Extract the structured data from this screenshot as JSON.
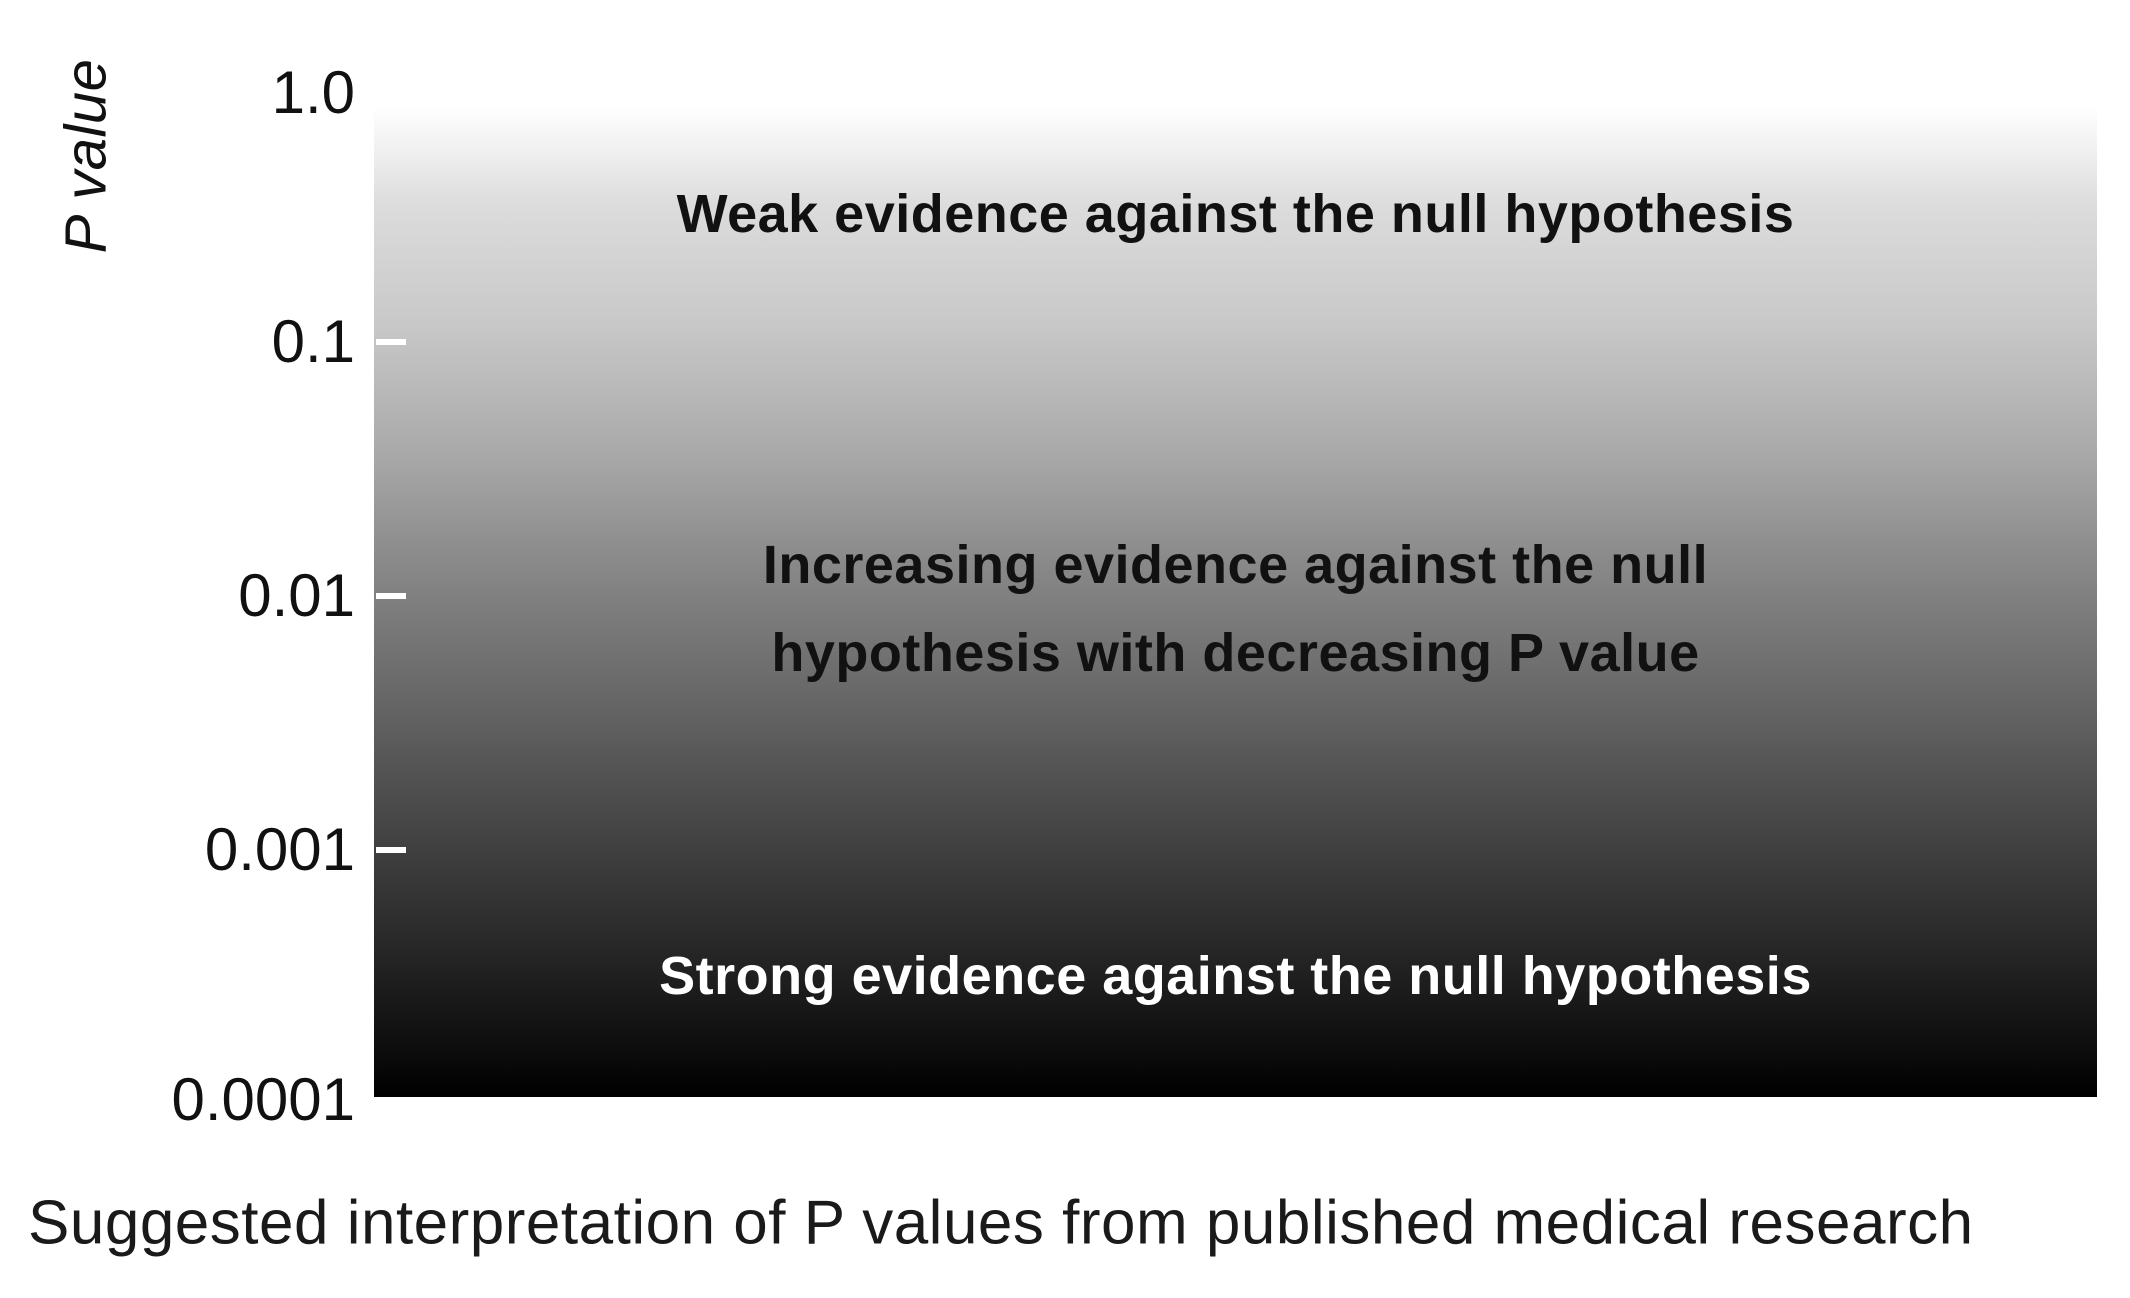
{
  "chart_data": {
    "type": "heatmap",
    "title": "",
    "ylabel": "P value",
    "xlabel": "",
    "yscale": "log",
    "ylim": [
      0.0001,
      1.0
    ],
    "yticks": [
      "1.0",
      "0.1",
      "0.01",
      "0.001",
      "0.0001"
    ],
    "gradient": {
      "direction": "white at P = 1.0 to black at P = 0.0001",
      "top_color": "#ffffff",
      "bottom_color": "#000000"
    },
    "bands": [
      {
        "label": "Weak evidence against the null hypothesis"
      },
      {
        "label_lines": [
          "Increasing evidence against the null",
          "hypothesis with decreasing P value"
        ]
      },
      {
        "label": "Strong evidence against the null hypothesis"
      }
    ],
    "grid": false
  },
  "caption": "Suggested interpretation of P values from published medical research",
  "colors": {
    "tick_mark": "#ffffff",
    "dark_text": "#111111",
    "light_text": "#ffffff"
  }
}
